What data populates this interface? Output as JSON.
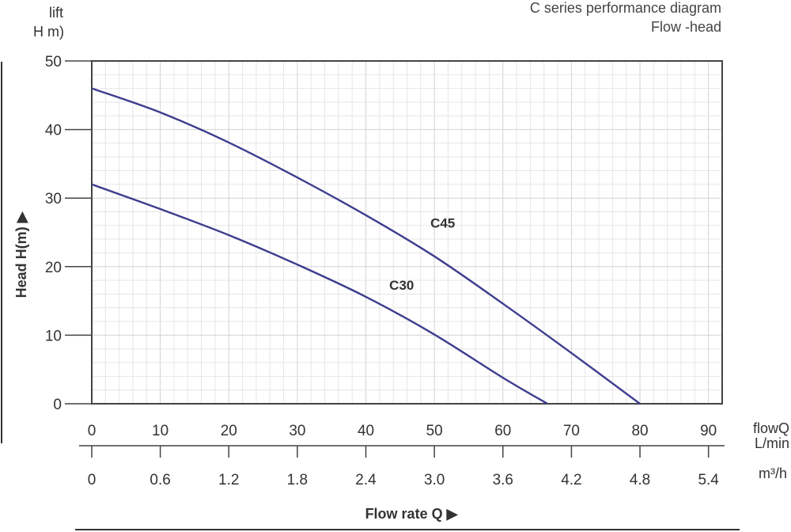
{
  "chart_data": {
    "type": "line",
    "title": "C series performance diagram",
    "subtitle": "Flow -head",
    "ylabel_top": "lift",
    "ylabel_top_2": "H  m)",
    "ylabel": "Head H(m) ▶",
    "xlabel": "Flow rate Q ▶",
    "x_unit_lmin": "flowQ",
    "x_unit_lmin_2": "L/min",
    "x_unit_m3h": "m³/h",
    "xlim": [
      0,
      92
    ],
    "ylim": [
      0,
      50
    ],
    "grid": true,
    "y_ticks": [
      0,
      10,
      20,
      30,
      40,
      50
    ],
    "x_ticks_lmin": [
      0,
      10,
      20,
      30,
      40,
      50,
      60,
      70,
      80,
      90
    ],
    "x_ticks_m3h": [
      "0",
      "0.6",
      "1.2",
      "1.8",
      "2.4",
      "3.0",
      "3.6",
      "4.2",
      "4.8",
      "5.4"
    ],
    "series": [
      {
        "name": "C45",
        "color": "#3d3d8f",
        "x": [
          0,
          10,
          20,
          30,
          40,
          50,
          60,
          70,
          80
        ],
        "y": [
          46,
          42.5,
          38.1,
          33,
          27.5,
          21.5,
          14.6,
          7.4,
          0
        ]
      },
      {
        "name": "C30",
        "color": "#3d3d8f",
        "x": [
          0,
          10,
          20,
          30,
          40,
          50,
          60,
          66.5
        ],
        "y": [
          32,
          28.4,
          24.6,
          20.3,
          15.6,
          10.1,
          3.8,
          0
        ]
      }
    ]
  }
}
